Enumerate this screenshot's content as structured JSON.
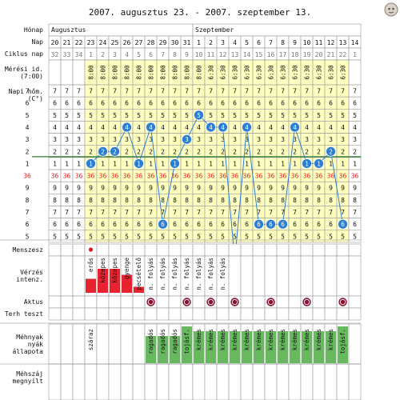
{
  "title": "2007. augusztus 23. - 2007. szeptember 13.",
  "labels": {
    "month": "Hónap",
    "day": "Nap",
    "cycle_day": "Ciklus nap",
    "measure_time": "Mérési id.\n(7:00)",
    "temp": "Napi hőm.\n(C°)",
    "menses": "Menszesz",
    "bleeding": "Vérzés\nintenz.",
    "intercourse": "Aktus",
    "preg_test": "Terh teszt",
    "cervical_mucus": "Méhnyak\nnyák\nállapota",
    "cervix_opening": "Méhszáj\nmegnyílt"
  },
  "months": [
    {
      "name": "Augusztus",
      "start": 0,
      "span": 12
    },
    {
      "name": "Szeptember",
      "start": 12,
      "span": 14
    }
  ],
  "days": [
    "20",
    "21",
    "22",
    "23",
    "24",
    "25",
    "26",
    "27",
    "28",
    "29",
    "30",
    "31",
    "1",
    "2",
    "3",
    "4",
    "5",
    "6",
    "7",
    "8",
    "9",
    "10",
    "11",
    "12",
    "13",
    "14"
  ],
  "cycle_days": [
    "32",
    "33",
    "34",
    "1",
    "2",
    "3",
    "4",
    "5",
    "6",
    "7",
    "8",
    "9",
    "10",
    "11",
    "12",
    "13",
    "14",
    "15",
    "16",
    "17",
    "18",
    "19",
    "20",
    "21",
    "22",
    "1"
  ],
  "times": [
    "",
    "",
    "",
    "8:00",
    "8:00",
    "8:00",
    "8:00",
    "8:00",
    "8:00",
    "8:00",
    "8:00",
    "8:00",
    "8:00",
    "6:30",
    "6:30",
    "6:30",
    "6:30",
    "6:30",
    "6:30",
    "6:30",
    "6:30",
    "6:30",
    "6:30",
    "6:30",
    "6:30",
    ""
  ],
  "temp_rows": [
    "7",
    "6",
    "5",
    "4",
    "3",
    "2",
    "1",
    "36",
    "9",
    "8",
    "7",
    "6",
    "5"
  ],
  "chart_data": {
    "type": "line",
    "title": "",
    "x": [
      "20",
      "21",
      "22",
      "23",
      "24",
      "25",
      "26",
      "27",
      "28",
      "29",
      "30",
      "31",
      "1",
      "2",
      "3",
      "4",
      "5",
      "6",
      "7",
      "8",
      "9",
      "10",
      "11",
      "12",
      "13",
      "14"
    ],
    "series": [
      {
        "values": [
          null,
          null,
          null,
          36.1,
          36.2,
          36.2,
          36.4,
          36.1,
          36.4,
          35.6,
          36.1,
          36.3,
          36.5,
          36.4,
          36.4,
          35.3,
          36.4,
          35.6,
          35.6,
          35.6,
          36.4,
          36.1,
          36.1,
          36.2,
          35.6,
          null
        ]
      }
    ],
    "coverline": 36.2,
    "ylabel": "Napi hőm. (C°)"
  },
  "menses": [
    null,
    null,
    null,
    "dot",
    null,
    null,
    null,
    null,
    null,
    null,
    null,
    null,
    null,
    null,
    null,
    null,
    null,
    null,
    null,
    null,
    null,
    null,
    null,
    null,
    null,
    null
  ],
  "bleeding": [
    {
      "i": 3,
      "text": "erős",
      "color": "#e8222e",
      "fill": 0.35
    },
    {
      "i": 4,
      "text": "közepes",
      "color": "#e8222e",
      "fill": 0.6
    },
    {
      "i": 5,
      "text": "közepes",
      "color": "#e8222e",
      "fill": 0.6
    },
    {
      "i": 6,
      "text": "gyenge",
      "color": "#e8222e",
      "fill": 0.45
    },
    {
      "i": 7,
      "text": "pecsételő",
      "color": "#e8222e",
      "fill": 0.15
    },
    {
      "i": 8,
      "text": "n. folyás",
      "color": null,
      "fill": 0
    },
    {
      "i": 9,
      "text": "n. folyás",
      "color": null,
      "fill": 0
    },
    {
      "i": 10,
      "text": "n. folyás",
      "color": null,
      "fill": 0
    },
    {
      "i": 11,
      "text": "n. folyás",
      "color": null,
      "fill": 0
    },
    {
      "i": 12,
      "text": "n. folyás",
      "color": null,
      "fill": 0
    },
    {
      "i": 13,
      "text": "n. folyás",
      "color": null,
      "fill": 0
    },
    {
      "i": 14,
      "text": "n. folyás",
      "color": null,
      "fill": 0
    }
  ],
  "intercourse_days": [
    8,
    11,
    13,
    15,
    18,
    21,
    24
  ],
  "mucus": [
    {
      "i": 3,
      "text": "száraz"
    },
    {
      "i": 8,
      "text": "ragadós"
    },
    {
      "i": 9,
      "text": "ragadós"
    },
    {
      "i": 10,
      "text": "ragadós"
    },
    {
      "i": 11,
      "text": "tojásf."
    },
    {
      "i": 12,
      "text": "krémes"
    },
    {
      "i": 13,
      "text": "krémes"
    },
    {
      "i": 14,
      "text": "krémes"
    },
    {
      "i": 15,
      "text": "krémes"
    },
    {
      "i": 16,
      "text": "krémes"
    },
    {
      "i": 17,
      "text": "krémes"
    },
    {
      "i": 18,
      "text": "krémes"
    },
    {
      "i": 19,
      "text": "krémes"
    },
    {
      "i": 20,
      "text": "krémes"
    },
    {
      "i": 21,
      "text": "krémes"
    },
    {
      "i": 22,
      "text": "krémes"
    },
    {
      "i": 23,
      "text": "krémes"
    },
    {
      "i": 24,
      "text": "tojásf."
    }
  ],
  "colors": {
    "yellow": "#ffffc0",
    "point": "#2a7fd4",
    "red_text": "#e0191f",
    "cover": "#2e7d32",
    "intercourse": "#8b1030",
    "mucus": "#67b85f"
  }
}
